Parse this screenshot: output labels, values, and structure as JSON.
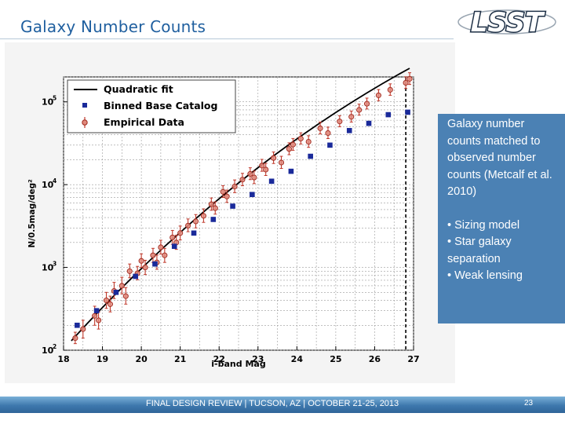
{
  "slide": {
    "title": "Galaxy Number Counts",
    "logo_text": "LSST",
    "footer_text": "FINAL DESIGN REVIEW | TUCSON, AZ | OCTOBER 21-25, 2013",
    "page_number": "23",
    "colors": {
      "title": "#1f5f9f",
      "callout_bg": "#4b81b4",
      "footer": "#3e78ad"
    }
  },
  "callout": {
    "paragraph": "Galaxy number counts matched to observed number counts (Metcalf et al. 2010)",
    "bullets": [
      "• Sizing model",
      "• Star galaxy separation",
      "• Weak lensing"
    ]
  },
  "chart_data": {
    "type": "scatter",
    "title": "",
    "xlabel": "i-band Mag",
    "ylabel": "N/0.5mag/deg²",
    "xlim": [
      18,
      27
    ],
    "ylim": [
      100,
      200000
    ],
    "yscale": "log",
    "x_ticks": [
      18,
      19,
      20,
      21,
      22,
      23,
      24,
      25,
      26,
      27
    ],
    "y_ticks": [
      {
        "value": 100,
        "base": "10",
        "exp": "2"
      },
      {
        "value": 1000,
        "base": "10",
        "exp": "3"
      },
      {
        "value": 10000,
        "base": "10",
        "exp": "4"
      },
      {
        "value": 100000,
        "base": "10",
        "exp": "5"
      }
    ],
    "grid": true,
    "legend_position": "top-left",
    "vline_x": 26.8,
    "series": [
      {
        "name": "Quadratic fit",
        "kind": "line",
        "color": "#000000",
        "x": [
          18.2,
          18.6,
          19.0,
          19.4,
          19.8,
          20.2,
          20.6,
          21.0,
          21.4,
          21.8,
          22.2,
          22.6,
          23.0,
          23.4,
          23.8,
          24.2,
          24.6,
          25.0,
          25.4,
          25.8,
          26.2,
          26.6,
          26.9
        ],
        "y": [
          130,
          208,
          328,
          510,
          785,
          1190,
          1790,
          2650,
          3890,
          5640,
          8080,
          11440,
          16050,
          22260,
          30580,
          41540,
          55850,
          74380,
          98110,
          128200,
          166000,
          212900,
          254500
        ]
      },
      {
        "name": "Binned Base Catalog",
        "kind": "square",
        "color": "#1a2a9a",
        "x": [
          18.35,
          18.85,
          19.35,
          19.85,
          20.35,
          20.85,
          21.35,
          21.85,
          22.35,
          22.85,
          23.35,
          23.85,
          24.35,
          24.85,
          25.35,
          25.85,
          26.35,
          26.85
        ],
        "y": [
          200,
          300,
          500,
          780,
          1100,
          1800,
          2600,
          3800,
          5500,
          7600,
          11000,
          14500,
          22000,
          30000,
          45000,
          55000,
          70000,
          75000
        ]
      },
      {
        "name": "Empirical Data",
        "kind": "circle",
        "color": "#c0392b",
        "x": [
          18.3,
          18.5,
          18.8,
          18.9,
          19.1,
          19.2,
          19.3,
          19.5,
          19.6,
          19.7,
          19.9,
          20.0,
          20.1,
          20.3,
          20.4,
          20.5,
          20.6,
          20.8,
          20.9,
          21.0,
          21.2,
          21.4,
          21.6,
          21.8,
          21.9,
          22.1,
          22.2,
          22.4,
          22.6,
          22.8,
          22.9,
          23.1,
          23.2,
          23.4,
          23.6,
          23.8,
          23.9,
          24.1,
          24.3,
          24.6,
          24.8,
          25.1,
          25.4,
          25.6,
          25.8,
          26.1,
          26.4,
          26.8,
          26.9
        ],
        "y": [
          140,
          180,
          260,
          230,
          400,
          360,
          520,
          600,
          450,
          900,
          850,
          1200,
          1000,
          1400,
          1150,
          1750,
          1400,
          2300,
          2000,
          2600,
          3200,
          3600,
          4200,
          5800,
          5200,
          8200,
          7200,
          9500,
          11500,
          13500,
          12200,
          17000,
          15200,
          21000,
          18500,
          27000,
          30500,
          36000,
          33000,
          48000,
          42000,
          58000,
          66000,
          80000,
          95000,
          120000,
          140000,
          170000,
          190000
        ],
        "err_low": [
          20,
          40,
          60,
          50,
          80,
          70,
          100,
          120,
          90,
          150,
          140,
          200,
          180,
          250,
          200,
          300,
          250,
          400,
          350,
          450,
          500,
          600,
          700,
          900,
          800,
          1200,
          1100,
          1500,
          1800,
          2000,
          1900,
          2500,
          2300,
          3000,
          2800,
          4000,
          4500,
          5000,
          4800,
          7000,
          6000,
          8000,
          9000,
          11000,
          13000,
          17000,
          20000,
          25000,
          28000
        ],
        "err_high": [
          25,
          50,
          80,
          60,
          100,
          90,
          140,
          160,
          120,
          200,
          180,
          260,
          220,
          300,
          260,
          380,
          300,
          500,
          450,
          560,
          650,
          750,
          900,
          1100,
          1000,
          1500,
          1400,
          1900,
          2200,
          2500,
          2400,
          3200,
          2900,
          3800,
          3500,
          5000,
          5600,
          6300,
          6000,
          9000,
          7500,
          10000,
          11500,
          14000,
          16000,
          21000,
          25000,
          31000,
          35000
        ]
      }
    ]
  }
}
